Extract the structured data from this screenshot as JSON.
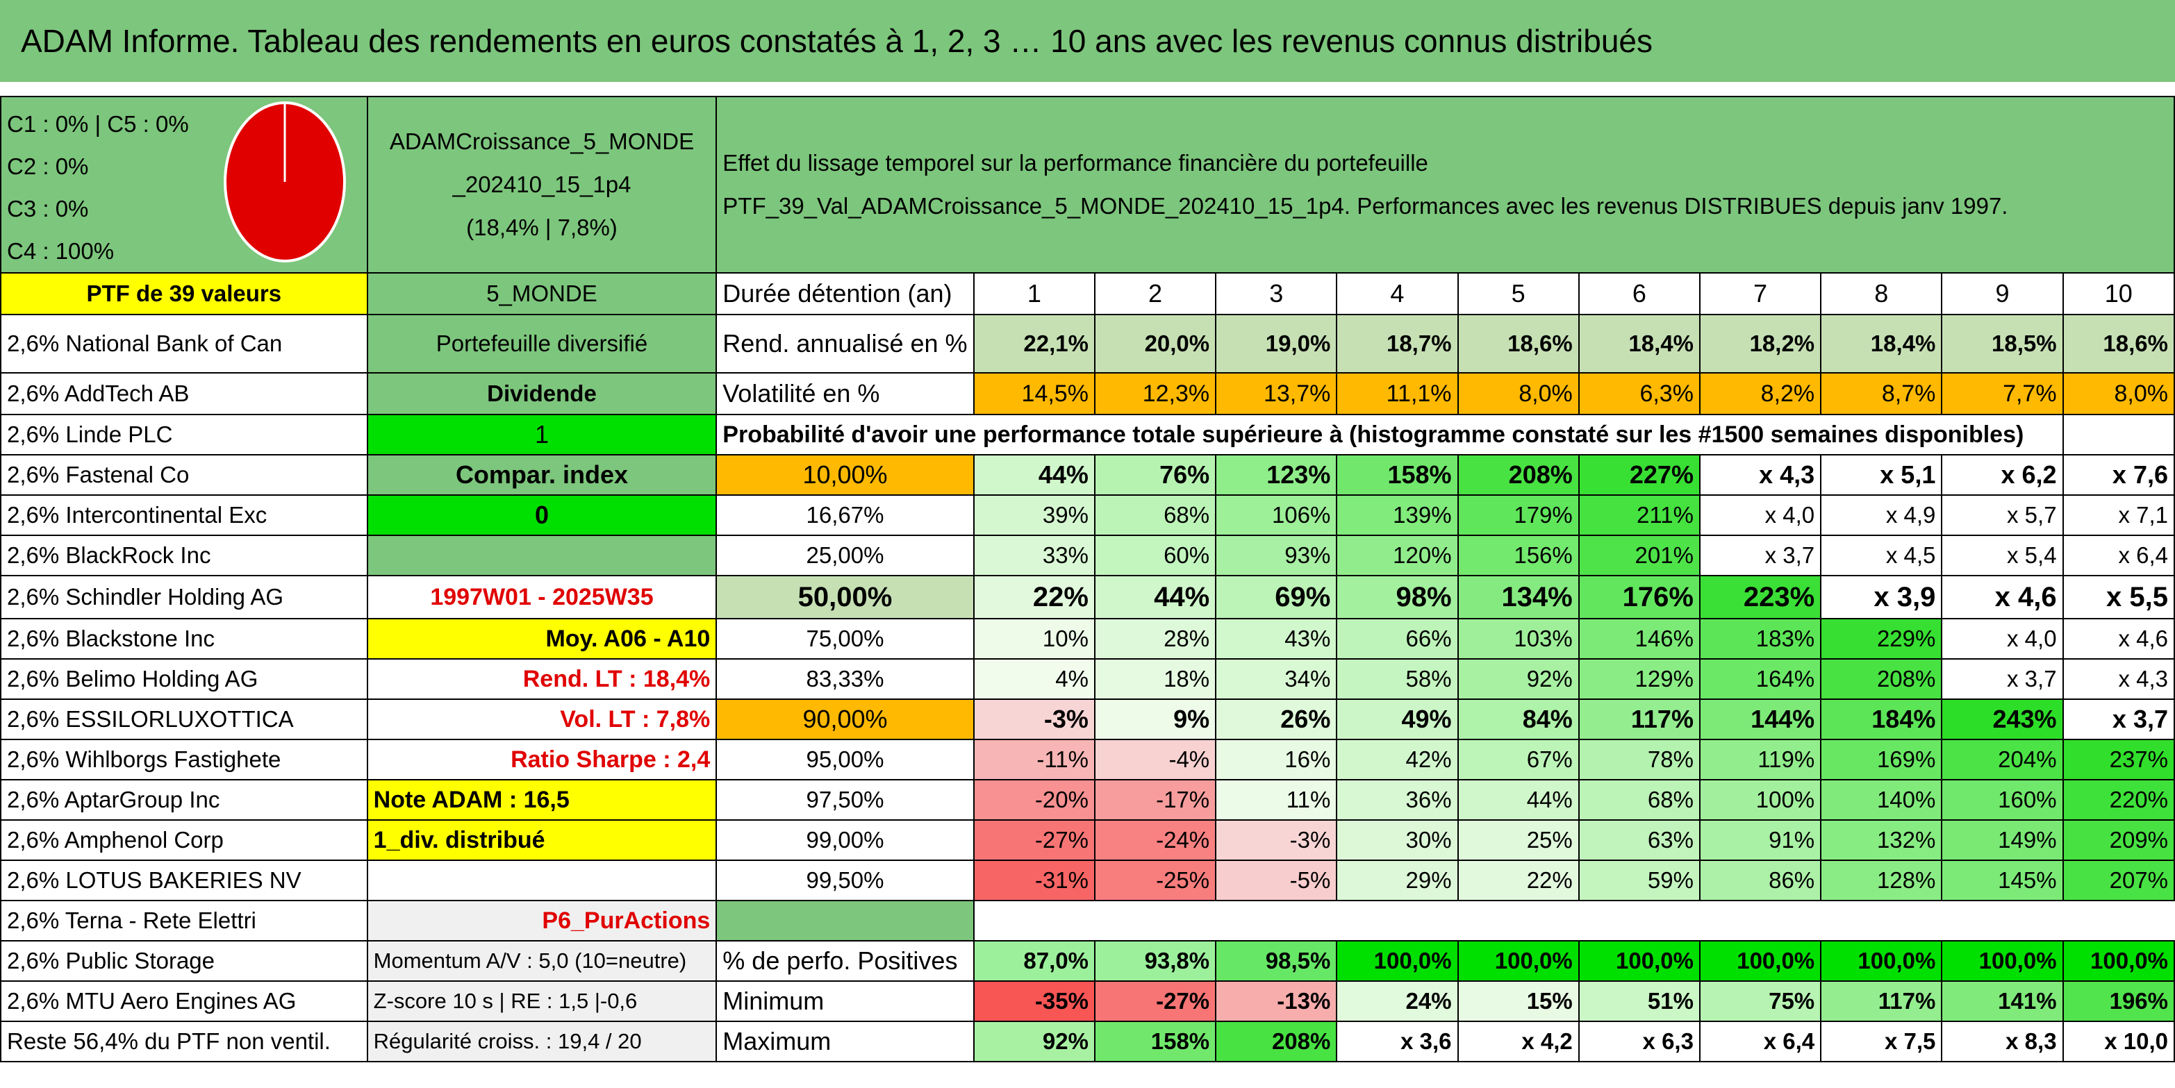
{
  "title": "ADAM Informe. Tableau des rendements en euros constatés à 1, 2, 3 … 10 ans avec les revenus connus distribués",
  "colors": {
    "green": "#7dc67d",
    "yellow": "#ffff00",
    "bright_green": "#00e000",
    "orange": "#ffb900",
    "red": "#e00000"
  },
  "header": {
    "legend": [
      "C1 : 0% | C5 : 0%",
      "C2 : 0%",
      "C3 : 0%",
      "C4 : 100%"
    ],
    "pie": {
      "C1": 0,
      "C2": 0,
      "C3": 0,
      "C4": 100,
      "C5": 0
    },
    "portfolio_name_1": "ADAMCroissance_5_MONDE",
    "portfolio_name_2": "_202410_15_1p4",
    "portfolio_stats": "(18,4% | 7,8%)",
    "effect_line1": "Effet du lissage temporel sur la performance financière du portefeuille",
    "effect_line2": "PTF_39_Val_ADAMCroissance_5_MONDE_202410_15_1p4. Performances avec les revenus DISTRIBUES depuis janv 1997."
  },
  "ptf_label": "PTF de 39 valeurs",
  "holdings": [
    "2,6% National Bank of Can",
    "2,6% AddTech AB",
    "2,6% Linde PLC",
    "2,6% Fastenal Co",
    "2,6% Intercontinental Exc",
    "2,6% BlackRock Inc",
    "2,6% Schindler Holding AG",
    "2,6% Blackstone Inc",
    "2,6% Belimo Holding AG",
    "2,6% ESSILORLUXOTTICA",
    "2,6% Wihlborgs Fastighete",
    "2,6% AptarGroup Inc",
    "2,6% Amphenol Corp",
    "2,6% LOTUS BAKERIES NV",
    "2,6% Terna - Rete Elettri",
    "2,6% Public Storage",
    "2,6% MTU Aero Engines AG",
    "Reste 56,4% du PTF non ventil."
  ],
  "info": {
    "zone": "5_MONDE",
    "type": "Portefeuille diversifié",
    "dividende": "Dividende",
    "dividende_val": "1",
    "compar": "Compar. index",
    "compar_val": "0",
    "period": "1997W01 - 2025W35",
    "moy": "Moy. A06 - A10",
    "rend_lt": "Rend. LT : 18,4%",
    "vol_lt": "Vol. LT : 7,8%",
    "sharpe": "Ratio Sharpe : 2,4",
    "note": "Note ADAM : 16,5",
    "div_dist": "1_div. distribué",
    "p6": "P6_PurActions",
    "momentum": "Momentum A/V : 5,0 (10=neutre)",
    "zscore": "Z-score 10 s | RE : 1,5 |-0,6",
    "regularite": "Régularité croiss. : 19,4 / 20"
  },
  "table": {
    "duree_label": "Durée détention (an)",
    "years": [
      "1",
      "2",
      "3",
      "4",
      "5",
      "6",
      "7",
      "8",
      "9",
      "10"
    ],
    "rend_label": "Rend. annualisé en %",
    "rend": [
      "22,1%",
      "20,0%",
      "19,0%",
      "18,7%",
      "18,6%",
      "18,4%",
      "18,2%",
      "18,4%",
      "18,5%",
      "18,6%"
    ],
    "vol_label": "Volatilité en %",
    "vol": [
      "14,5%",
      "12,3%",
      "13,7%",
      "11,1%",
      "8,0%",
      "6,3%",
      "8,2%",
      "8,7%",
      "7,7%",
      "8,0%"
    ],
    "proba_label": "Probabilité d'avoir une performance totale supérieure à (histogramme constaté sur les #1500 semaines disponibles)",
    "rows": [
      {
        "p": "10,00%",
        "v": [
          "44%",
          "76%",
          "123%",
          "158%",
          "208%",
          "227%",
          "x 4,3",
          "x 5,1",
          "x 6,2",
          "x 7,6"
        ]
      },
      {
        "p": "16,67%",
        "v": [
          "39%",
          "68%",
          "106%",
          "139%",
          "179%",
          "211%",
          "x 4,0",
          "x 4,9",
          "x 5,7",
          "x 7,1"
        ]
      },
      {
        "p": "25,00%",
        "v": [
          "33%",
          "60%",
          "93%",
          "120%",
          "156%",
          "201%",
          "x 3,7",
          "x 4,5",
          "x 5,4",
          "x 6,4"
        ]
      },
      {
        "p": "50,00%",
        "v": [
          "22%",
          "44%",
          "69%",
          "98%",
          "134%",
          "176%",
          "223%",
          "x 3,9",
          "x 4,6",
          "x 5,5"
        ]
      },
      {
        "p": "75,00%",
        "v": [
          "10%",
          "28%",
          "43%",
          "66%",
          "103%",
          "146%",
          "183%",
          "229%",
          "x 4,0",
          "x 4,6"
        ]
      },
      {
        "p": "83,33%",
        "v": [
          "4%",
          "18%",
          "34%",
          "58%",
          "92%",
          "129%",
          "164%",
          "208%",
          "x 3,7",
          "x 4,3"
        ]
      },
      {
        "p": "90,00%",
        "v": [
          "-3%",
          "9%",
          "26%",
          "49%",
          "84%",
          "117%",
          "144%",
          "184%",
          "243%",
          "x 3,7"
        ]
      },
      {
        "p": "95,00%",
        "v": [
          "-11%",
          "-4%",
          "16%",
          "42%",
          "67%",
          "78%",
          "119%",
          "169%",
          "204%",
          "237%"
        ]
      },
      {
        "p": "97,50%",
        "v": [
          "-20%",
          "-17%",
          "11%",
          "36%",
          "44%",
          "68%",
          "100%",
          "140%",
          "160%",
          "220%"
        ]
      },
      {
        "p": "99,00%",
        "v": [
          "-27%",
          "-24%",
          "-3%",
          "30%",
          "25%",
          "63%",
          "91%",
          "132%",
          "149%",
          "209%"
        ]
      },
      {
        "p": "99,50%",
        "v": [
          "-31%",
          "-25%",
          "-5%",
          "29%",
          "22%",
          "59%",
          "86%",
          "128%",
          "145%",
          "207%"
        ]
      }
    ],
    "pos_label": "% de perfo. Positives",
    "pos": [
      "87,0%",
      "93,8%",
      "98,5%",
      "100,0%",
      "100,0%",
      "100,0%",
      "100,0%",
      "100,0%",
      "100,0%",
      "100,0%"
    ],
    "min_label": "Minimum",
    "min": [
      "-35%",
      "-27%",
      "-13%",
      "24%",
      "15%",
      "51%",
      "75%",
      "117%",
      "141%",
      "196%"
    ],
    "max_label": "Maximum",
    "max": [
      "92%",
      "158%",
      "208%",
      "x 3,6",
      "x 4,2",
      "x 6,3",
      "x 6,4",
      "x 7,5",
      "x 8,3",
      "x 10,0"
    ]
  }
}
